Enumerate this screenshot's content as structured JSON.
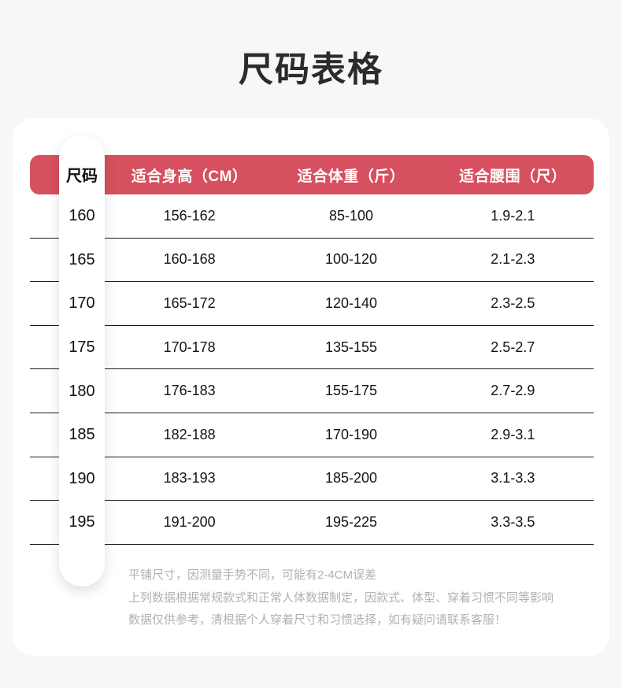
{
  "page_title": "尺码表格",
  "colors": {
    "page_bg": "#f7f7f8",
    "card_bg": "#ffffff",
    "header_bg": "#d6505f",
    "header_text": "#ffffff",
    "body_text": "#141414",
    "divider": "#1c1c1c",
    "note_text": "#b1b1b1"
  },
  "chart_data": {
    "type": "table",
    "title": "尺码表格",
    "columns": [
      "尺码",
      "适合身高（CM）",
      "适合体重（斤）",
      "适合腰围（尺）"
    ],
    "rows": [
      [
        "160",
        "156-162",
        "85-100",
        "1.9-2.1"
      ],
      [
        "165",
        "160-168",
        "100-120",
        "2.1-2.3"
      ],
      [
        "170",
        "165-172",
        "120-140",
        "2.3-2.5"
      ],
      [
        "175",
        "170-178",
        "135-155",
        "2.5-2.7"
      ],
      [
        "180",
        "176-183",
        "155-175",
        "2.7-2.9"
      ],
      [
        "185",
        "182-188",
        "170-190",
        "2.9-3.1"
      ],
      [
        "190",
        "183-193",
        "185-200",
        "3.1-3.3"
      ],
      [
        "195",
        "191-200",
        "195-225",
        "3.3-3.5"
      ]
    ]
  },
  "notes": {
    "lines": [
      "平铺尺寸，因测量手势不同，可能有2-4CM误差",
      "上列数据根据常规款式和正常人体数据制定，因款式、体型、穿着习惯不同等影响",
      "数据仅供参考，清根据个人穿着尺寸和习惯选择，如有疑问请联系客服！"
    ]
  }
}
